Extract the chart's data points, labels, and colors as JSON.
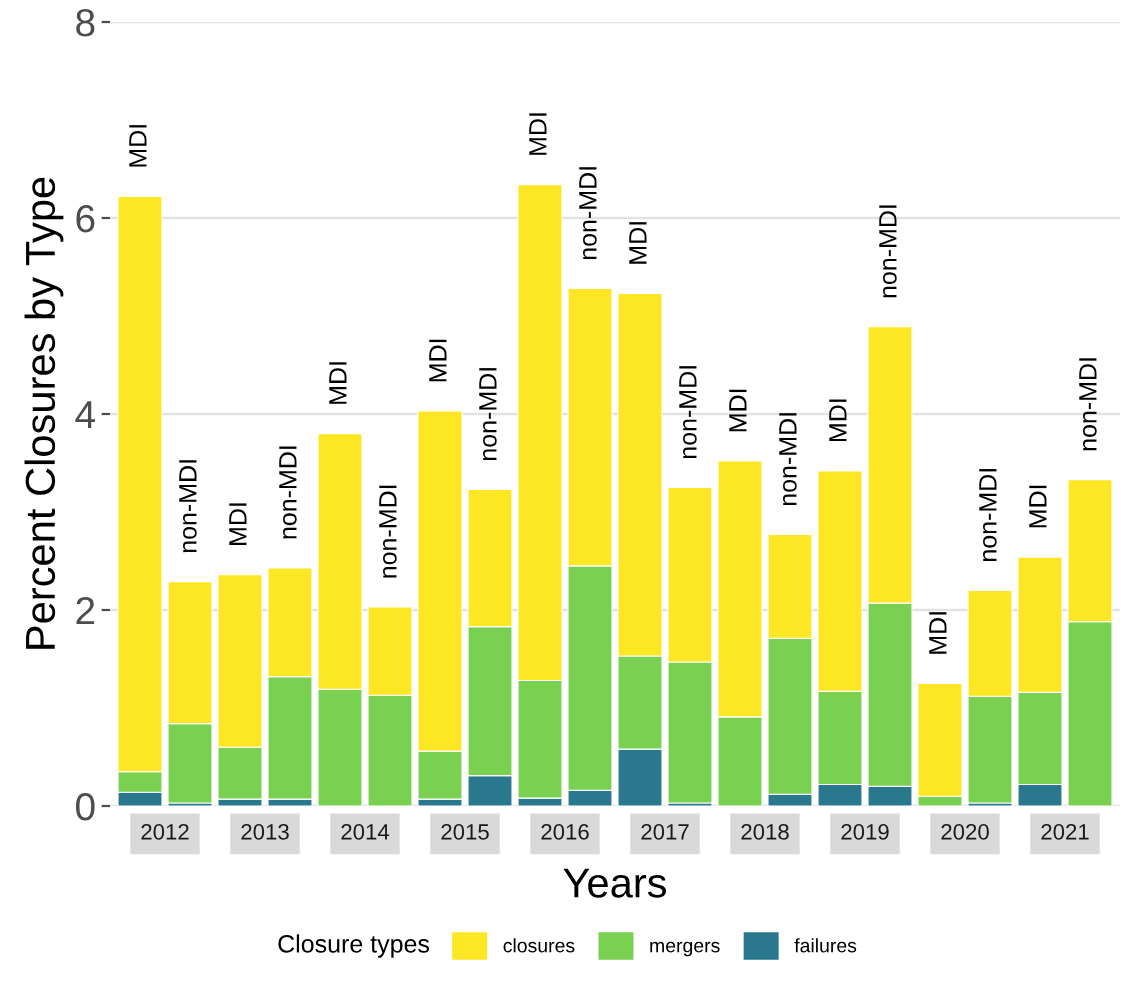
{
  "chart_data": {
    "type": "bar",
    "stacked": true,
    "categories": [
      "MDI",
      "non-MDI",
      "MDI",
      "non-MDI",
      "MDI",
      "non-MDI",
      "MDI",
      "non-MDI",
      "MDI",
      "non-MDI",
      "MDI",
      "non-MDI",
      "MDI",
      "non-MDI",
      "MDI",
      "non-MDI",
      "MDI",
      "non-MDI",
      "MDI",
      "non-MDI"
    ],
    "ylabel": "Percent Closures by Type",
    "xlabel": "Years",
    "legend": "bottom",
    "legend_title": "Closure types",
    "ylim": [
      0,
      8
    ],
    "yticks": [
      0,
      2,
      4,
      6,
      8
    ],
    "grid": "y",
    "tick_labels": "y",
    "annotations": [
      "2012",
      "2013",
      "2014",
      "2015",
      "2016",
      "2017",
      "2018",
      "2019",
      "2020",
      "2021"
    ],
    "series": [
      {
        "name": "failures",
        "color": "#2a788e",
        "values": [
          0.14,
          0.03,
          0.07,
          0.07,
          0,
          0,
          0.07,
          0.31,
          0.08,
          0.16,
          0.58,
          0.03,
          0,
          0.12,
          0.22,
          0.2,
          0,
          0.03,
          0.22,
          0
        ]
      },
      {
        "name": "mergers",
        "color": "#7ad151",
        "values": [
          0.21,
          0.81,
          0.53,
          1.25,
          1.19,
          1.13,
          0.49,
          1.52,
          1.2,
          2.29,
          0.95,
          1.44,
          0.91,
          1.59,
          0.95,
          1.87,
          0.1,
          1.09,
          0.94,
          1.88
        ]
      },
      {
        "name": "closures",
        "color": "#fde725",
        "values": [
          5.87,
          1.45,
          1.76,
          1.11,
          2.61,
          0.9,
          3.47,
          1.4,
          5.06,
          2.83,
          3.7,
          1.78,
          2.61,
          1.06,
          2.25,
          2.82,
          1.15,
          1.08,
          1.38,
          1.45
        ]
      }
    ]
  }
}
